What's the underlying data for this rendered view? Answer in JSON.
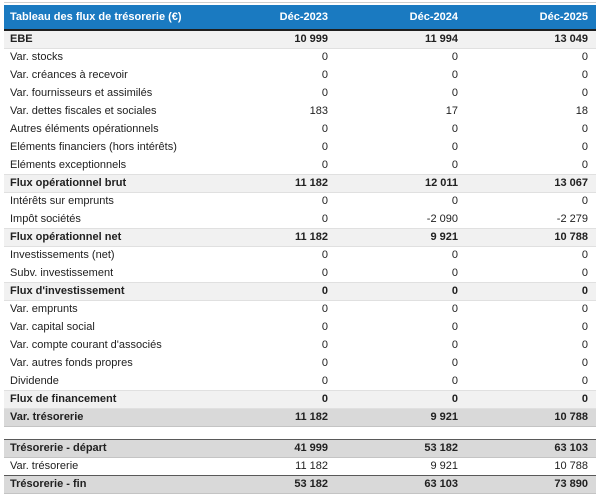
{
  "report": {
    "title": "Tableau des flux de trésorerie (€)",
    "columns": [
      "Déc-2023",
      "Déc-2024",
      "Déc-2025"
    ],
    "rows": [
      {
        "label": "EBE",
        "values": [
          "10 999",
          "11 994",
          "13 049"
        ],
        "style": "section"
      },
      {
        "label": "Var. stocks",
        "values": [
          "0",
          "0",
          "0"
        ],
        "style": "normal"
      },
      {
        "label": "Var. créances à recevoir",
        "values": [
          "0",
          "0",
          "0"
        ],
        "style": "normal"
      },
      {
        "label": "Var. fournisseurs et assimilés",
        "values": [
          "0",
          "0",
          "0"
        ],
        "style": "normal"
      },
      {
        "label": "Var. dettes fiscales et sociales",
        "values": [
          "183",
          "17",
          "18"
        ],
        "style": "normal"
      },
      {
        "label": "Autres éléments opérationnels",
        "values": [
          "0",
          "0",
          "0"
        ],
        "style": "normal"
      },
      {
        "label": "Eléments financiers (hors intérêts)",
        "values": [
          "0",
          "0",
          "0"
        ],
        "style": "normal"
      },
      {
        "label": "Eléments exceptionnels",
        "values": [
          "0",
          "0",
          "0"
        ],
        "style": "normal"
      },
      {
        "label": "Flux opérationnel brut",
        "values": [
          "11 182",
          "12 011",
          "13 067"
        ],
        "style": "section"
      },
      {
        "label": "Intérêts sur emprunts",
        "values": [
          "0",
          "0",
          "0"
        ],
        "style": "normal"
      },
      {
        "label": "Impôt sociétés",
        "values": [
          "0",
          "-2 090",
          "-2 279"
        ],
        "style": "normal"
      },
      {
        "label": "Flux opérationnel net",
        "values": [
          "11 182",
          "9 921",
          "10 788"
        ],
        "style": "section"
      },
      {
        "label": "Investissements (net)",
        "values": [
          "0",
          "0",
          "0"
        ],
        "style": "normal"
      },
      {
        "label": "Subv. investissement",
        "values": [
          "0",
          "0",
          "0"
        ],
        "style": "normal"
      },
      {
        "label": "Flux d'investissement",
        "values": [
          "0",
          "0",
          "0"
        ],
        "style": "section"
      },
      {
        "label": "Var. emprunts",
        "values": [
          "0",
          "0",
          "0"
        ],
        "style": "normal"
      },
      {
        "label": "Var. capital social",
        "values": [
          "0",
          "0",
          "0"
        ],
        "style": "normal"
      },
      {
        "label": "Var. compte courant d'associés",
        "values": [
          "0",
          "0",
          "0"
        ],
        "style": "normal"
      },
      {
        "label": "Var. autres fonds propres",
        "values": [
          "0",
          "0",
          "0"
        ],
        "style": "normal"
      },
      {
        "label": "Dividende",
        "values": [
          "0",
          "0",
          "0"
        ],
        "style": "normal"
      },
      {
        "label": "Flux de financement",
        "values": [
          "0",
          "0",
          "0"
        ],
        "style": "section"
      },
      {
        "label": "Var. trésorerie",
        "values": [
          "11 182",
          "9 921",
          "10 788"
        ],
        "style": "summary"
      },
      {
        "label": "",
        "values": [],
        "style": "spacer"
      },
      {
        "label": "Trésorerie - départ",
        "values": [
          "41 999",
          "53 182",
          "63 103"
        ],
        "style": "summary"
      },
      {
        "label": "Var. trésorerie",
        "values": [
          "11 182",
          "9 921",
          "10 788"
        ],
        "style": "normal"
      },
      {
        "label": "Trésorerie - fin",
        "values": [
          "53 182",
          "63 103",
          "73 890"
        ],
        "style": "summary"
      }
    ]
  },
  "colors": {
    "header_bg": "#1a7ac1",
    "header_text": "#ffffff",
    "header_border": "#1f1f1f",
    "section_bg": "#f1f1f1",
    "section_border": "#e0e0e0",
    "summary_bg": "#d9d9d9",
    "summary_border": "#595959",
    "light_border": "#c4c4c4",
    "top_rule": "#cfcfcf",
    "text": "#212121"
  }
}
